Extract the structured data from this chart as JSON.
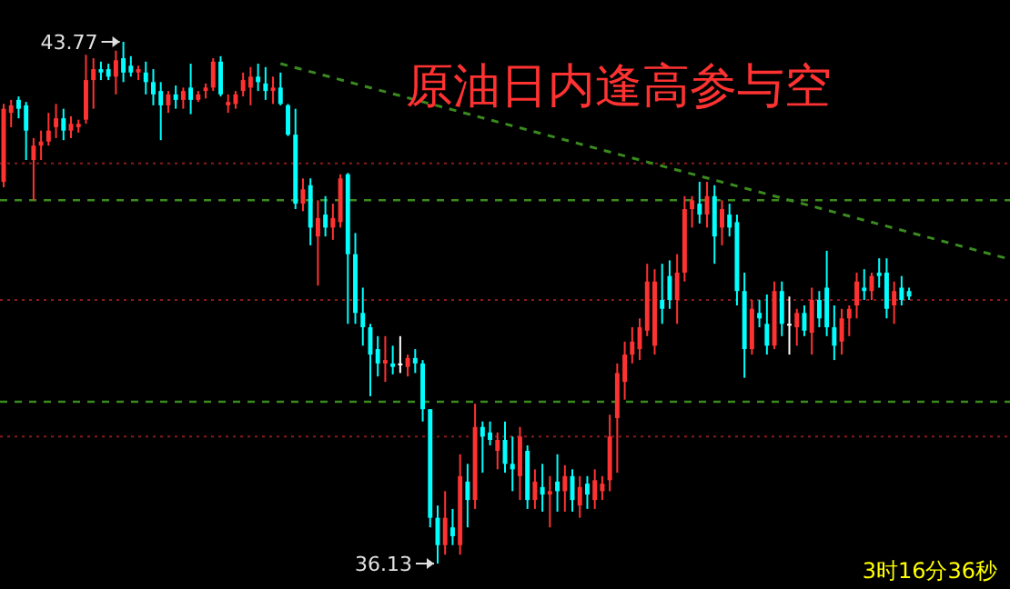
{
  "chart_data": {
    "type": "candlestick",
    "title": "原油日内逢高参与空",
    "annotations": [
      "43.77",
      "36.13",
      "3时16分36秒"
    ],
    "categories": [
      null,
      null,
      null,
      null,
      null,
      null,
      null,
      null,
      null,
      null,
      null,
      null,
      null,
      null,
      null,
      null,
      null,
      null,
      null,
      null,
      null,
      null,
      null,
      null,
      null,
      null,
      null,
      null,
      null,
      null,
      null,
      null,
      null,
      null,
      null,
      null,
      null,
      null,
      null,
      null,
      null,
      null,
      null,
      null,
      null,
      null,
      null,
      null,
      null,
      null,
      null,
      null,
      null,
      null,
      null,
      null,
      null,
      null,
      null,
      null,
      null,
      null,
      null,
      null,
      null,
      null,
      null,
      null,
      null,
      null,
      null,
      null,
      null,
      null,
      null,
      null,
      null,
      null,
      null,
      null,
      null,
      null,
      null,
      null,
      null,
      null,
      null,
      null,
      null,
      null,
      null,
      null,
      null,
      null,
      null,
      null,
      null,
      null,
      null,
      null,
      null,
      null,
      null,
      null,
      null,
      null,
      null,
      null,
      null,
      null,
      null,
      null,
      null,
      null,
      null,
      null,
      null,
      null,
      null,
      null,
      null,
      null,
      null,
      null,
      null,
      null,
      null,
      null,
      null,
      null,
      null,
      null,
      null,
      null,
      null
    ],
    "ohlc": [
      [
        41.72,
        42.86,
        41.64,
        42.79
      ],
      [
        42.73,
        42.92,
        42.52,
        42.84
      ],
      [
        42.92,
        42.97,
        42.65,
        42.79
      ],
      [
        42.84,
        42.89,
        42.04,
        42.47
      ],
      [
        42.04,
        42.36,
        41.45,
        42.25
      ],
      [
        42.25,
        42.47,
        42.04,
        42.31
      ],
      [
        42.31,
        42.73,
        42.25,
        42.47
      ],
      [
        42.52,
        42.86,
        42.36,
        42.65
      ],
      [
        42.65,
        42.79,
        42.33,
        42.47
      ],
      [
        42.47,
        42.68,
        42.36,
        42.57
      ],
      [
        42.52,
        42.63,
        42.44,
        42.57
      ],
      [
        42.63,
        43.58,
        42.57,
        43.21
      ],
      [
        43.21,
        43.53,
        42.79,
        43.37
      ],
      [
        43.37,
        43.48,
        43.21,
        43.32
      ],
      [
        43.37,
        43.45,
        43.21,
        43.26
      ],
      [
        43.26,
        43.64,
        43.0,
        43.5
      ],
      [
        43.53,
        43.77,
        43.18,
        43.32
      ],
      [
        43.42,
        43.56,
        43.26,
        43.32
      ],
      [
        43.32,
        43.42,
        43.21,
        43.37
      ],
      [
        43.32,
        43.48,
        43.0,
        43.18
      ],
      [
        43.18,
        43.37,
        42.84,
        43.0
      ],
      [
        43.05,
        43.18,
        42.33,
        42.84
      ],
      [
        42.84,
        43.05,
        42.73,
        43.0
      ],
      [
        43.0,
        43.13,
        42.79,
        42.92
      ],
      [
        42.92,
        43.1,
        42.79,
        43.05
      ],
      [
        43.1,
        43.45,
        42.71,
        42.92
      ],
      [
        42.92,
        43.05,
        42.89,
        43.0
      ],
      [
        43.05,
        43.16,
        42.94,
        43.1
      ],
      [
        43.1,
        43.53,
        43.05,
        43.48
      ],
      [
        43.48,
        43.56,
        42.97,
        43.0
      ],
      [
        42.84,
        43.0,
        42.73,
        42.89
      ],
      [
        42.86,
        43.05,
        42.79,
        43.0
      ],
      [
        43.05,
        43.32,
        42.97,
        43.21
      ],
      [
        43.1,
        43.4,
        42.84,
        43.26
      ],
      [
        43.26,
        43.45,
        43.05,
        43.18
      ],
      [
        43.16,
        43.4,
        42.92,
        43.05
      ],
      [
        43.05,
        43.26,
        42.86,
        43.1
      ],
      [
        43.1,
        43.32,
        42.84,
        42.86
      ],
      [
        42.84,
        42.86,
        42.39,
        42.41
      ],
      [
        42.41,
        42.79,
        41.32,
        41.4
      ],
      [
        41.4,
        41.77,
        41.29,
        41.61
      ],
      [
        41.67,
        41.77,
        40.79,
        41.05
      ],
      [
        40.92,
        41.45,
        40.2,
        41.19
      ],
      [
        41.24,
        41.51,
        40.92,
        41.05
      ],
      [
        41.05,
        41.4,
        40.87,
        41.19
      ],
      [
        41.13,
        41.83,
        41.05,
        41.77
      ],
      [
        41.83,
        41.85,
        39.64,
        40.66
      ],
      [
        40.66,
        40.97,
        39.64,
        39.8
      ],
      [
        39.8,
        40.17,
        39.32,
        39.59
      ],
      [
        39.59,
        39.64,
        38.58,
        39.19
      ],
      [
        39.27,
        39.46,
        38.87,
        39.06
      ],
      [
        39.06,
        39.46,
        38.79,
        39.11
      ],
      [
        39.06,
        39.32,
        38.9,
        39.01
      ],
      [
        39.06,
        39.46,
        38.92,
        39.06
      ],
      [
        39.01,
        39.19,
        38.87,
        39.14
      ],
      [
        39.14,
        39.27,
        38.92,
        39.06
      ],
      [
        39.06,
        39.11,
        38.21,
        38.39
      ],
      [
        38.39,
        38.39,
        36.66,
        36.8
      ],
      [
        36.8,
        36.98,
        36.13,
        36.4
      ],
      [
        36.4,
        37.19,
        36.26,
        36.8
      ],
      [
        36.66,
        36.93,
        36.4,
        36.53
      ],
      [
        36.4,
        37.73,
        36.26,
        37.41
      ],
      [
        37.33,
        37.59,
        36.66,
        37.06
      ],
      [
        37.06,
        38.47,
        36.93,
        38.13
      ],
      [
        38.13,
        38.21,
        37.46,
        37.99
      ],
      [
        38.05,
        38.21,
        37.86,
        37.94
      ],
      [
        37.78,
        38.05,
        37.51,
        37.94
      ],
      [
        37.94,
        38.21,
        37.46,
        37.59
      ],
      [
        37.59,
        37.99,
        37.19,
        37.51
      ],
      [
        37.41,
        38.13,
        37.06,
        37.99
      ],
      [
        37.78,
        37.86,
        36.93,
        37.06
      ],
      [
        37.06,
        37.51,
        36.93,
        37.33
      ],
      [
        37.25,
        37.59,
        36.89,
        37.14
      ],
      [
        37.14,
        37.41,
        36.66,
        37.19
      ],
      [
        37.33,
        37.73,
        36.89,
        37.19
      ],
      [
        37.19,
        37.57,
        36.89,
        37.41
      ],
      [
        37.41,
        37.51,
        36.89,
        37.06
      ],
      [
        36.98,
        37.41,
        36.8,
        37.25
      ],
      [
        37.3,
        37.41,
        36.93,
        37.14
      ],
      [
        37.06,
        37.51,
        36.93,
        37.35
      ],
      [
        37.19,
        37.41,
        37.06,
        37.3
      ],
      [
        37.35,
        38.31,
        37.19,
        37.99
      ],
      [
        38.26,
        39.06,
        37.46,
        38.92
      ],
      [
        38.79,
        39.38,
        38.53,
        39.19
      ],
      [
        39.19,
        39.59,
        39.06,
        39.38
      ],
      [
        39.27,
        39.72,
        39.11,
        39.59
      ],
      [
        39.54,
        40.52,
        39.46,
        40.26
      ],
      [
        39.32,
        40.44,
        39.19,
        40.26
      ],
      [
        39.99,
        40.52,
        39.64,
        39.86
      ],
      [
        40.34,
        40.57,
        39.86,
        39.99
      ],
      [
        39.99,
        40.66,
        39.64,
        40.39
      ],
      [
        40.39,
        41.51,
        40.26,
        41.32
      ],
      [
        41.32,
        41.51,
        41.05,
        41.45
      ],
      [
        41.4,
        41.72,
        41.11,
        41.24
      ],
      [
        41.24,
        41.72,
        41.05,
        41.51
      ],
      [
        41.51,
        41.67,
        40.52,
        40.92
      ],
      [
        41.05,
        41.45,
        40.79,
        41.32
      ],
      [
        41.24,
        41.4,
        40.92,
        41.05
      ],
      [
        41.13,
        41.24,
        39.91,
        40.12
      ],
      [
        40.12,
        40.39,
        38.85,
        39.27
      ],
      [
        39.27,
        39.99,
        39.19,
        39.86
      ],
      [
        39.8,
        39.99,
        39.59,
        39.72
      ],
      [
        39.64,
        40.07,
        39.19,
        39.32
      ],
      [
        39.32,
        40.26,
        39.27,
        40.12
      ],
      [
        40.12,
        40.26,
        39.46,
        39.64
      ],
      [
        39.64,
        40.04,
        39.19,
        39.64
      ],
      [
        39.59,
        39.86,
        39.32,
        39.8
      ],
      [
        39.8,
        39.91,
        39.46,
        39.54
      ],
      [
        39.51,
        40.17,
        39.19,
        39.99
      ],
      [
        39.99,
        40.12,
        39.59,
        39.72
      ],
      [
        40.17,
        40.71,
        39.46,
        39.59
      ],
      [
        39.59,
        39.91,
        39.11,
        39.32
      ],
      [
        39.38,
        39.86,
        39.19,
        39.72
      ],
      [
        39.72,
        39.91,
        39.46,
        39.86
      ],
      [
        39.91,
        40.39,
        39.72,
        40.26
      ],
      [
        40.17,
        40.44,
        39.99,
        40.12
      ],
      [
        40.12,
        40.39,
        39.99,
        40.34
      ],
      [
        40.39,
        40.6,
        40.17,
        40.34
      ],
      [
        40.39,
        40.6,
        39.72,
        39.86
      ],
      [
        39.91,
        40.26,
        39.64,
        40.12
      ],
      [
        40.17,
        40.34,
        39.91,
        39.99
      ],
      [
        40.12,
        40.17,
        39.99,
        40.04
      ],
      null,
      null,
      null,
      null,
      null,
      null,
      null,
      null,
      null,
      null,
      null,
      null,
      null
    ],
    "colors": [
      "#ff3232",
      "#ff3232",
      "#00ffff",
      "#00ffff",
      "#ff3232",
      "#ff3232",
      "#ff3232",
      "#ff3232",
      "#00ffff",
      "#ff3232",
      "#ff3232",
      "#ff3232",
      "#ff3232",
      "#00ffff",
      "#00ffff",
      "#ff3232",
      "#00ffff",
      "#00ffff",
      "#ff3232",
      "#00ffff",
      "#00ffff",
      "#00ffff",
      "#ff3232",
      "#00ffff",
      "#ff3232",
      "#00ffff",
      "#ff3232",
      "#ff3232",
      "#ff3232",
      "#00ffff",
      "#ff3232",
      "#ff3232",
      "#ff3232",
      "#ff3232",
      "#00ffff",
      "#00ffff",
      "#ff3232",
      "#00ffff",
      "#00ffff",
      "#00ffff",
      "#ff3232",
      "#00ffff",
      "#ff3232",
      "#00ffff",
      "#ff3232",
      "#ff3232",
      "#00ffff",
      "#00ffff",
      "#00ffff",
      "#00ffff",
      "#00ffff",
      "#ff3232",
      "#00ffff",
      "#ffffff",
      "#ff3232",
      "#00ffff",
      "#00ffff",
      "#00ffff",
      "#00ffff",
      "#ff3232",
      "#00ffff",
      "#ff3232",
      "#00ffff",
      "#ff3232",
      "#00ffff",
      "#00ffff",
      "#ff3232",
      "#00ffff",
      "#00ffff",
      "#ff3232",
      "#00ffff",
      "#ff3232",
      "#00ffff",
      "#ff3232",
      "#00ffff",
      "#ff3232",
      "#00ffff",
      "#ff3232",
      "#00ffff",
      "#ff3232",
      "#ff3232",
      "#ff3232",
      "#ff3232",
      "#ff3232",
      "#ff3232",
      "#ff3232",
      "#ff3232",
      "#ff3232",
      "#00ffff",
      "#00ffff",
      "#ff3232",
      "#ff3232",
      "#ff3232",
      "#00ffff",
      "#ff3232",
      "#00ffff",
      "#ff3232",
      "#00ffff",
      "#00ffff",
      "#00ffff",
      "#ff3232",
      "#00ffff",
      "#00ffff",
      "#ff3232",
      "#00ffff",
      "#ffffff",
      "#ff3232",
      "#00ffff",
      "#ff3232",
      "#00ffff",
      "#00ffff",
      "#00ffff",
      "#ff3232",
      "#ff3232",
      "#ff3232",
      "#00ffff",
      "#ff3232",
      "#00ffff",
      "#00ffff",
      "#ff3232",
      "#00ffff",
      "#00ffff",
      null,
      null,
      null,
      null,
      null,
      null,
      null,
      null,
      null,
      null,
      null,
      null,
      null
    ],
    "series": [
      {
        "type": "line",
        "values": [
          null,
          null,
          null,
          null,
          null,
          null,
          null,
          null,
          null,
          null,
          null,
          null,
          null,
          null,
          null,
          null,
          null,
          null,
          null,
          null,
          null,
          null,
          null,
          null,
          null,
          null,
          null,
          null,
          null,
          null,
          null,
          null,
          null,
          null,
          null,
          null,
          null,
          43.45,
          null,
          null,
          null,
          null,
          null,
          null,
          null,
          null,
          null,
          null,
          null,
          null,
          null,
          null,
          null,
          null,
          null,
          null,
          null,
          null,
          null,
          null,
          null,
          null,
          null,
          null,
          null,
          null,
          null,
          null,
          null,
          null,
          null,
          null,
          null,
          null,
          null,
          null,
          null,
          null,
          null,
          null,
          null,
          null,
          null,
          null,
          null,
          null,
          null,
          null,
          null,
          null,
          null,
          null,
          null,
          null,
          null,
          null,
          null,
          null,
          null,
          null,
          null,
          null,
          null,
          null,
          null,
          null,
          null,
          null,
          null,
          null,
          null,
          null,
          null,
          null,
          null,
          null,
          null,
          null,
          null,
          null,
          null,
          null,
          null,
          null,
          null,
          null,
          null,
          null,
          null,
          null,
          null,
          null,
          null,
          null,
          40.6
        ],
        "color": "#3a8a1e",
        "line_style": "dashed"
      }
    ],
    "ref_lines": [
      {
        "axis": "y",
        "value": 41.99,
        "color": "#8b1a1a",
        "line_style": "dotted"
      },
      {
        "axis": "y",
        "value": 41.45,
        "color": "#3a8a1e",
        "line_style": "dashed"
      },
      {
        "axis": "y",
        "value": 39.99,
        "color": "#8b1a1a",
        "line_style": "dotted"
      },
      {
        "axis": "y",
        "value": 38.5,
        "color": "#3a8a1e",
        "line_style": "dashed"
      },
      {
        "axis": "y",
        "value": 37.99,
        "color": "#8b1a1a",
        "line_style": "dotted"
      }
    ]
  }
}
